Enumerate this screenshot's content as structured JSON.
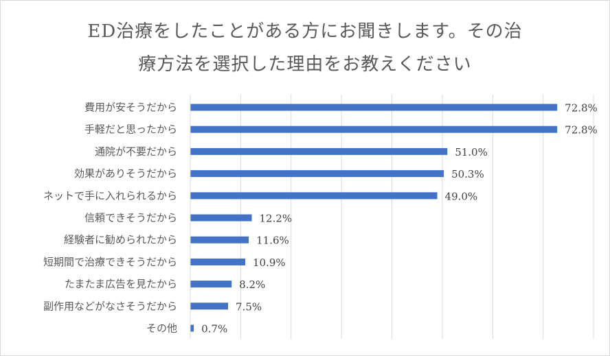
{
  "chart_data": {
    "type": "bar",
    "orientation": "horizontal",
    "title_lines": [
      "ED治療をしたことがある方にお聞きします。その治",
      "療方法を選択した理由をお教えください"
    ],
    "categories": [
      "費用が安そうだから",
      "手軽だと思ったから",
      "通院が不要だから",
      "効果がありそうだから",
      "ネットで手に入れられるから",
      "信頼できそうだから",
      "経験者に勧められたから",
      "短期間で治療できそうだから",
      "たまたま広告を見たから",
      "副作用などがなさそうだから",
      "その他"
    ],
    "values": [
      72.8,
      72.8,
      51.0,
      50.3,
      49.0,
      12.2,
      11.6,
      10.9,
      8.2,
      7.5,
      0.7
    ],
    "value_labels": [
      "72.8%",
      "72.8%",
      "51.0%",
      "50.3%",
      "49.0%",
      "12.2%",
      "11.6%",
      "10.9%",
      "8.2%",
      "7.5%",
      "0.7%"
    ],
    "xlim": [
      0,
      80
    ],
    "grid": true,
    "legend": "none",
    "bar_color": "#4472c4"
  }
}
